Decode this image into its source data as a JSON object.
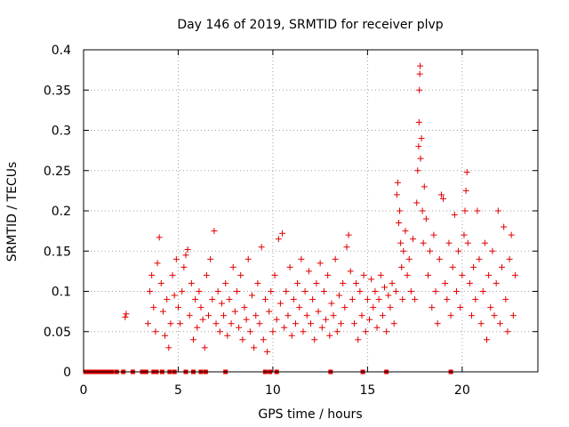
{
  "chart_data": {
    "type": "scatter",
    "title": "Day 146 of 2019, SRMTID for receiver plvp",
    "xlabel": "GPS time / hours",
    "ylabel": "SRMTID / TECUs",
    "xlim": [
      0,
      24
    ],
    "ylim": [
      0,
      0.4
    ],
    "xticks": [
      0,
      5,
      10,
      15,
      20
    ],
    "yticks": [
      0,
      0.05,
      0.1,
      0.15,
      0.2,
      0.25,
      0.3,
      0.35,
      0.4
    ],
    "xtick_labels": [
      "0",
      "5",
      "10",
      "15",
      "20"
    ],
    "ytick_labels": [
      "0",
      "0.05",
      "0.1",
      "0.15",
      "0.2",
      "0.25",
      "0.3",
      "0.35",
      "0.4"
    ],
    "grid": true,
    "marker": "+",
    "color": "#e00000",
    "series": [
      {
        "name": "SRMTID",
        "points": [
          [
            2.2,
            0.068
          ],
          [
            2.25,
            0.072
          ],
          [
            3.4,
            0.06
          ],
          [
            3.5,
            0.1
          ],
          [
            3.6,
            0.12
          ],
          [
            3.7,
            0.08
          ],
          [
            3.8,
            0.05
          ],
          [
            3.9,
            0.135
          ],
          [
            4.0,
            0.167
          ],
          [
            4.1,
            0.11
          ],
          [
            4.2,
            0.075
          ],
          [
            4.3,
            0.045
          ],
          [
            4.4,
            0.09
          ],
          [
            4.5,
            0.03
          ],
          [
            4.6,
            0.06
          ],
          [
            4.7,
            0.12
          ],
          [
            4.8,
            0.095
          ],
          [
            4.9,
            0.14
          ],
          [
            5.0,
            0.08
          ],
          [
            5.1,
            0.06
          ],
          [
            5.2,
            0.1
          ],
          [
            5.3,
            0.13
          ],
          [
            5.4,
            0.145
          ],
          [
            5.5,
            0.152
          ],
          [
            5.6,
            0.07
          ],
          [
            5.7,
            0.11
          ],
          [
            5.8,
            0.04
          ],
          [
            5.9,
            0.09
          ],
          [
            6.0,
            0.055
          ],
          [
            6.1,
            0.1
          ],
          [
            6.2,
            0.08
          ],
          [
            6.3,
            0.065
          ],
          [
            6.4,
            0.03
          ],
          [
            6.5,
            0.12
          ],
          [
            6.6,
            0.07
          ],
          [
            6.7,
            0.14
          ],
          [
            6.8,
            0.09
          ],
          [
            6.9,
            0.175
          ],
          [
            7.0,
            0.06
          ],
          [
            7.1,
            0.1
          ],
          [
            7.2,
            0.05
          ],
          [
            7.3,
            0.085
          ],
          [
            7.4,
            0.07
          ],
          [
            7.5,
            0.11
          ],
          [
            7.6,
            0.045
          ],
          [
            7.7,
            0.09
          ],
          [
            7.8,
            0.06
          ],
          [
            7.9,
            0.13
          ],
          [
            8.0,
            0.075
          ],
          [
            8.1,
            0.1
          ],
          [
            8.2,
            0.055
          ],
          [
            8.3,
            0.12
          ],
          [
            8.4,
            0.04
          ],
          [
            8.5,
            0.08
          ],
          [
            8.6,
            0.065
          ],
          [
            8.7,
            0.14
          ],
          [
            8.8,
            0.05
          ],
          [
            8.9,
            0.095
          ],
          [
            9.0,
            0.03
          ],
          [
            9.1,
            0.07
          ],
          [
            9.2,
            0.11
          ],
          [
            9.3,
            0.06
          ],
          [
            9.4,
            0.155
          ],
          [
            9.5,
            0.04
          ],
          [
            9.6,
            0.09
          ],
          [
            9.7,
            0.025
          ],
          [
            9.8,
            0.075
          ],
          [
            9.9,
            0.1
          ],
          [
            10.0,
            0.05
          ],
          [
            10.1,
            0.12
          ],
          [
            10.2,
            0.065
          ],
          [
            10.3,
            0.165
          ],
          [
            10.4,
            0.085
          ],
          [
            10.5,
            0.172
          ],
          [
            10.6,
            0.055
          ],
          [
            10.7,
            0.1
          ],
          [
            10.8,
            0.07
          ],
          [
            10.9,
            0.13
          ],
          [
            11.0,
            0.045
          ],
          [
            11.1,
            0.09
          ],
          [
            11.2,
            0.06
          ],
          [
            11.3,
            0.11
          ],
          [
            11.4,
            0.08
          ],
          [
            11.5,
            0.14
          ],
          [
            11.6,
            0.05
          ],
          [
            11.7,
            0.1
          ],
          [
            11.8,
            0.07
          ],
          [
            11.9,
            0.125
          ],
          [
            12.0,
            0.06
          ],
          [
            12.1,
            0.09
          ],
          [
            12.2,
            0.04
          ],
          [
            12.3,
            0.11
          ],
          [
            12.4,
            0.075
          ],
          [
            12.5,
            0.135
          ],
          [
            12.6,
            0.055
          ],
          [
            12.7,
            0.1
          ],
          [
            12.8,
            0.065
          ],
          [
            12.9,
            0.12
          ],
          [
            13.0,
            0.045
          ],
          [
            13.1,
            0.085
          ],
          [
            13.2,
            0.07
          ],
          [
            13.3,
            0.14
          ],
          [
            13.4,
            0.05
          ],
          [
            13.5,
            0.095
          ],
          [
            13.6,
            0.06
          ],
          [
            13.7,
            0.11
          ],
          [
            13.8,
            0.08
          ],
          [
            13.9,
            0.155
          ],
          [
            14.0,
            0.17
          ],
          [
            14.1,
            0.125
          ],
          [
            14.2,
            0.09
          ],
          [
            14.3,
            0.06
          ],
          [
            14.4,
            0.11
          ],
          [
            14.5,
            0.04
          ],
          [
            14.6,
            0.1
          ],
          [
            14.7,
            0.07
          ],
          [
            14.8,
            0.12
          ],
          [
            14.9,
            0.05
          ],
          [
            15.0,
            0.09
          ],
          [
            15.1,
            0.065
          ],
          [
            15.2,
            0.115
          ],
          [
            15.3,
            0.08
          ],
          [
            15.4,
            0.1
          ],
          [
            15.5,
            0.055
          ],
          [
            15.6,
            0.09
          ],
          [
            15.7,
            0.12
          ],
          [
            15.8,
            0.07
          ],
          [
            15.9,
            0.105
          ],
          [
            16.0,
            0.05
          ],
          [
            16.1,
            0.095
          ],
          [
            16.2,
            0.08
          ],
          [
            16.3,
            0.11
          ],
          [
            16.4,
            0.06
          ],
          [
            16.5,
            0.1
          ],
          [
            16.55,
            0.22
          ],
          [
            16.6,
            0.235
          ],
          [
            16.65,
            0.185
          ],
          [
            16.7,
            0.2
          ],
          [
            16.75,
            0.16
          ],
          [
            16.8,
            0.13
          ],
          [
            16.85,
            0.09
          ],
          [
            16.9,
            0.15
          ],
          [
            17.0,
            0.175
          ],
          [
            17.1,
            0.12
          ],
          [
            17.2,
            0.14
          ],
          [
            17.3,
            0.1
          ],
          [
            17.4,
            0.165
          ],
          [
            17.5,
            0.09
          ],
          [
            17.6,
            0.21
          ],
          [
            17.65,
            0.25
          ],
          [
            17.7,
            0.28
          ],
          [
            17.72,
            0.31
          ],
          [
            17.74,
            0.35
          ],
          [
            17.76,
            0.37
          ],
          [
            17.78,
            0.38
          ],
          [
            17.8,
            0.265
          ],
          [
            17.85,
            0.29
          ],
          [
            17.9,
            0.2
          ],
          [
            17.95,
            0.16
          ],
          [
            18.0,
            0.23
          ],
          [
            18.1,
            0.19
          ],
          [
            18.2,
            0.12
          ],
          [
            18.3,
            0.15
          ],
          [
            18.4,
            0.08
          ],
          [
            18.5,
            0.17
          ],
          [
            18.6,
            0.1
          ],
          [
            18.7,
            0.06
          ],
          [
            18.8,
            0.14
          ],
          [
            18.9,
            0.22
          ],
          [
            19.0,
            0.215
          ],
          [
            19.1,
            0.11
          ],
          [
            19.2,
            0.09
          ],
          [
            19.3,
            0.16
          ],
          [
            19.4,
            0.07
          ],
          [
            19.5,
            0.13
          ],
          [
            19.6,
            0.195
          ],
          [
            19.7,
            0.1
          ],
          [
            19.8,
            0.15
          ],
          [
            19.9,
            0.08
          ],
          [
            20.0,
            0.12
          ],
          [
            20.1,
            0.17
          ],
          [
            20.15,
            0.2
          ],
          [
            20.2,
            0.225
          ],
          [
            20.25,
            0.248
          ],
          [
            20.3,
            0.16
          ],
          [
            20.4,
            0.11
          ],
          [
            20.5,
            0.07
          ],
          [
            20.6,
            0.13
          ],
          [
            20.7,
            0.09
          ],
          [
            20.8,
            0.2
          ],
          [
            20.9,
            0.14
          ],
          [
            21.0,
            0.06
          ],
          [
            21.1,
            0.1
          ],
          [
            21.2,
            0.16
          ],
          [
            21.3,
            0.04
          ],
          [
            21.4,
            0.12
          ],
          [
            21.5,
            0.08
          ],
          [
            21.6,
            0.15
          ],
          [
            21.7,
            0.07
          ],
          [
            21.8,
            0.11
          ],
          [
            21.9,
            0.2
          ],
          [
            22.0,
            0.06
          ],
          [
            22.1,
            0.13
          ],
          [
            22.2,
            0.18
          ],
          [
            22.3,
            0.09
          ],
          [
            22.4,
            0.05
          ],
          [
            22.5,
            0.14
          ],
          [
            22.6,
            0.17
          ],
          [
            22.7,
            0.07
          ],
          [
            22.8,
            0.12
          ]
        ]
      }
    ],
    "zero_markers_x": [
      0.1,
      0.2,
      0.35,
      0.5,
      0.6,
      0.75,
      0.85,
      1.0,
      1.1,
      1.25,
      1.4,
      1.5,
      1.75,
      2.1,
      2.6,
      3.1,
      3.3,
      3.7,
      3.85,
      4.15,
      4.55,
      4.8,
      5.4,
      5.8,
      6.2,
      6.45,
      7.5,
      9.6,
      9.85,
      10.2,
      13.05,
      14.75,
      16.0,
      19.4
    ]
  }
}
